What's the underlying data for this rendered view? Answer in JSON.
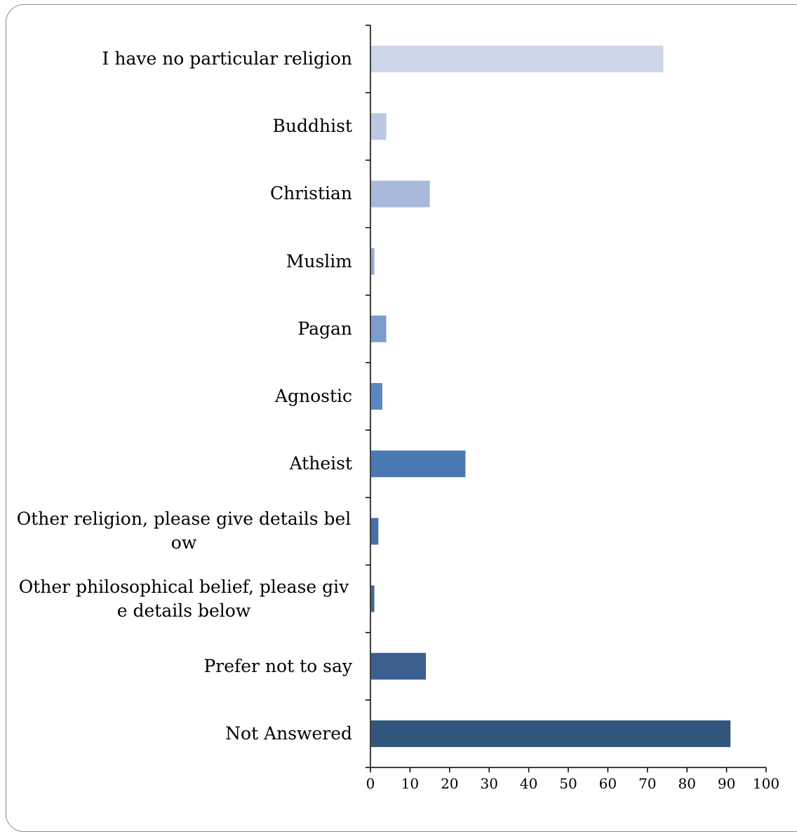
{
  "chart_data": {
    "type": "bar",
    "orientation": "horizontal",
    "categories": [
      "I have no particular religion",
      "Buddhist",
      "Christian",
      "Muslim",
      "Pagan",
      "Agnostic",
      "Atheist",
      "Other religion, please give details below",
      "Other philosophical belief, please give details below",
      "Prefer not to say",
      "Not Answered"
    ],
    "values": [
      74,
      4,
      15,
      1,
      4,
      3,
      24,
      2,
      1,
      14,
      91
    ],
    "colors": [
      "#cdd6e8",
      "#bcc8e2",
      "#a9b9dc",
      "#96acd7",
      "#7f9dcc",
      "#5a87c2",
      "#4a79b2",
      "#4670a6",
      "#416899",
      "#3a5f8f",
      "#32567c"
    ],
    "xlim": [
      0,
      100
    ],
    "xticks": [
      0,
      10,
      20,
      30,
      40,
      50,
      60,
      70,
      80,
      90,
      100
    ],
    "title": "",
    "xlabel": "",
    "ylabel": "",
    "grid": false,
    "legend": "none"
  }
}
